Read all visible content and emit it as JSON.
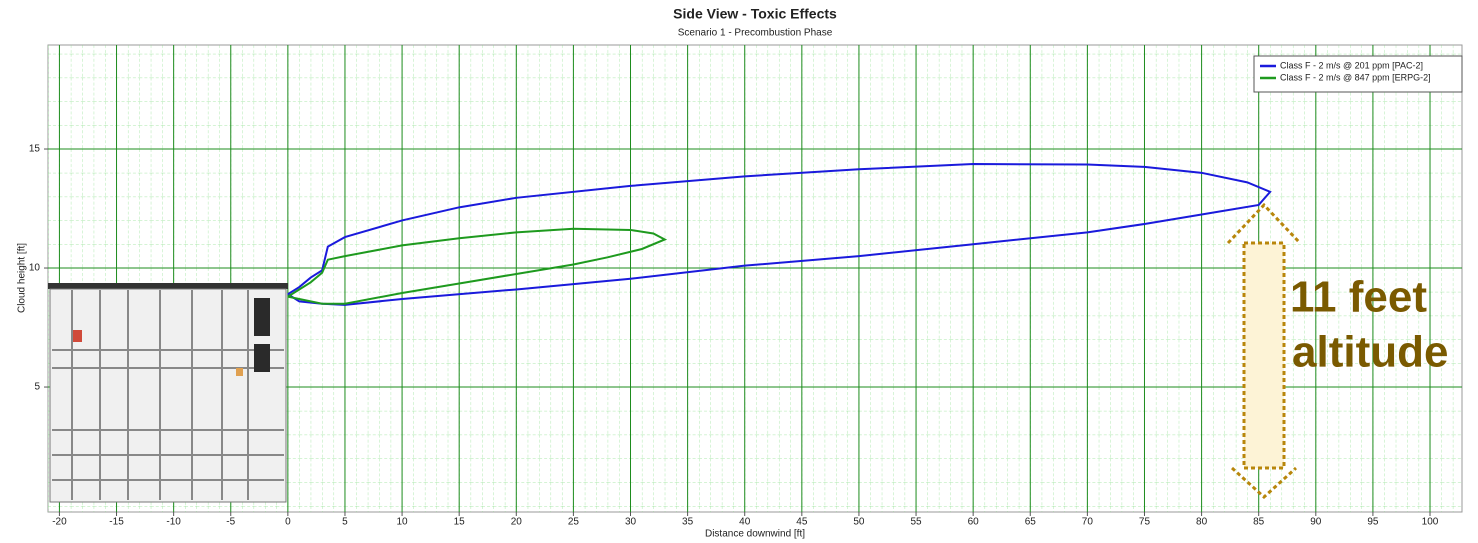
{
  "chart_data": {
    "type": "line",
    "title": "Side View - Toxic Effects",
    "subtitle": "Scenario 1 - Precombustion Phase",
    "x_label": "Distance downwind [ft]",
    "y_label": "Cloud height [ft]",
    "xlim": [
      -21,
      102.8
    ],
    "ylim": [
      -0.25,
      19.37
    ],
    "xticks": [
      -20,
      -15,
      -10,
      -5,
      0,
      5,
      10,
      15,
      20,
      25,
      30,
      35,
      40,
      45,
      50,
      55,
      60,
      65,
      70,
      75,
      80,
      85,
      90,
      95,
      100
    ],
    "yticks": [
      5,
      10,
      15
    ],
    "grid": true,
    "legend": "top-right",
    "series": [
      {
        "name": "Class F - 2 m/s @ 201 ppm  [PAC-2]",
        "color": "#1a1adc",
        "x": [
          0,
          1,
          2,
          3,
          3.5,
          5,
          10,
          15,
          20,
          30,
          40,
          50,
          60,
          70,
          75,
          80,
          84,
          86,
          85,
          80,
          75,
          70,
          60,
          50,
          40,
          30,
          20,
          10,
          5,
          3,
          1,
          0
        ],
        "values": [
          8.9,
          9.2,
          9.6,
          9.9,
          10.9,
          11.3,
          12.0,
          12.55,
          12.95,
          13.45,
          13.85,
          14.15,
          14.37,
          14.35,
          14.25,
          14.0,
          13.6,
          13.2,
          12.65,
          12.25,
          11.85,
          11.5,
          11.0,
          10.5,
          10.1,
          9.55,
          9.1,
          8.7,
          8.45,
          8.5,
          8.6,
          8.9
        ]
      },
      {
        "name": "Class F - 2 m/s @ 847 ppm  [ERPG-2]",
        "color": "#1e9a1e",
        "x": [
          0,
          2,
          3,
          3.5,
          5,
          10,
          15,
          20,
          25,
          30,
          32,
          33,
          31,
          28,
          25,
          20,
          15,
          10,
          5,
          3,
          1,
          0
        ],
        "values": [
          8.8,
          9.4,
          9.8,
          10.35,
          10.5,
          10.95,
          11.25,
          11.5,
          11.65,
          11.6,
          11.45,
          11.2,
          10.8,
          10.45,
          10.15,
          9.75,
          9.35,
          8.95,
          8.5,
          8.5,
          8.7,
          8.8
        ]
      }
    ],
    "annotation": [
      "11 feet",
      "altitude"
    ]
  }
}
